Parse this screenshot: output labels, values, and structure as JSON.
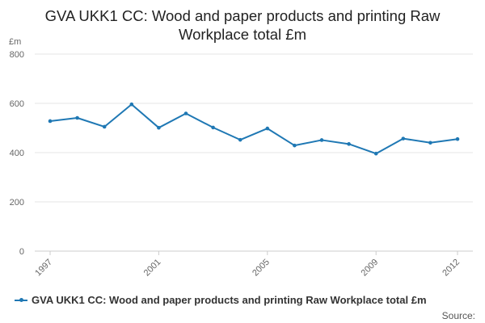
{
  "title_line1": "GVA UKK1 CC: Wood and paper products and printing Raw",
  "title_line2": "Workplace total £m",
  "source_label": "Source:",
  "colors": {
    "series": "#1f78b4",
    "grid": "#e6e6e6",
    "axis_text": "#666666"
  },
  "chart_data": {
    "type": "line",
    "title": "GVA UKK1 CC: Wood and paper products and printing Raw Workplace total £m",
    "ylabel": "£m",
    "xlabel": "",
    "ylim": [
      0,
      800
    ],
    "yticks": [
      0,
      200,
      400,
      600,
      800
    ],
    "xlim": [
      1997,
      2012
    ],
    "xticks": [
      1997,
      2001,
      2005,
      2009,
      2012
    ],
    "grid": true,
    "legend_position": "bottom",
    "x": [
      1997,
      1998,
      1999,
      2000,
      2001,
      2002,
      2003,
      2004,
      2005,
      2006,
      2007,
      2008,
      2009,
      2010,
      2011,
      2012
    ],
    "series": [
      {
        "name": "GVA UKK1 CC: Wood and paper products and printing Raw Workplace total £m",
        "values": [
          528,
          541,
          505,
          596,
          501,
          559,
          502,
          452,
          498,
          429,
          451,
          435,
          396,
          457,
          440,
          455
        ]
      }
    ]
  }
}
